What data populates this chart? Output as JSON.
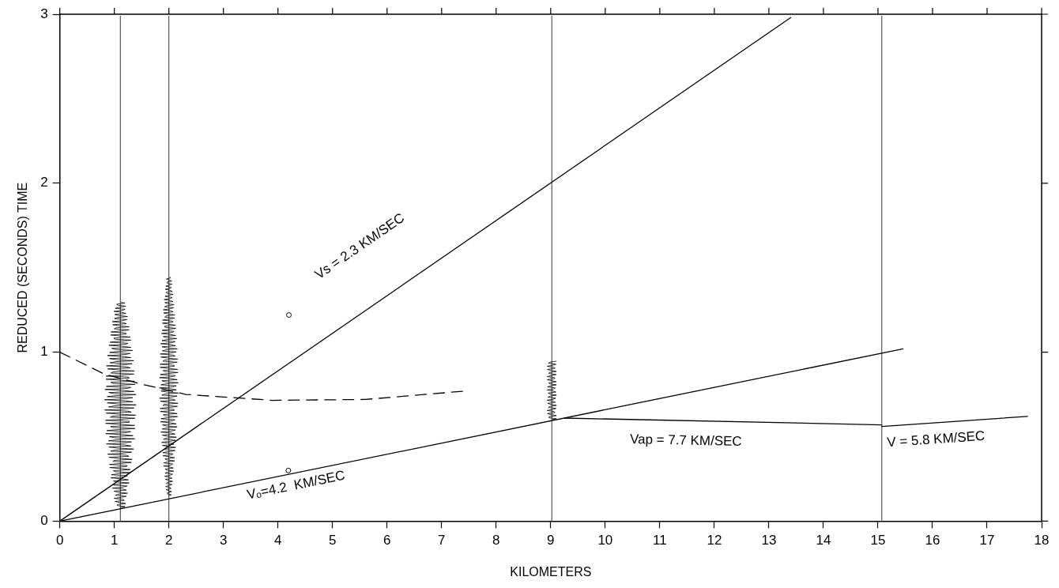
{
  "chart_data": {
    "type": "line",
    "xlabel": "KILOMETERS",
    "ylabel": "REDUCED (SECONDS) TIME",
    "xlim": [
      0,
      18
    ],
    "ylim": [
      0,
      3
    ],
    "xticks": [
      0,
      1,
      2,
      3,
      4,
      5,
      6,
      7,
      8,
      9,
      10,
      11,
      12,
      13,
      14,
      15,
      16,
      17,
      18
    ],
    "yticks": [
      0,
      1,
      2,
      3
    ],
    "grid": false,
    "legend": false,
    "series": [
      {
        "color": "#000000",
        "x": [
          0,
          13.4
        ],
        "values": [
          0,
          2.98
        ]
      },
      {
        "color": "#000000",
        "x": [
          0,
          15.46
        ],
        "values": [
          0,
          1.02
        ]
      },
      {
        "color": "#000000",
        "x": [
          9.25,
          15.07
        ],
        "values": [
          0.61,
          0.57
        ]
      },
      {
        "color": "#000000",
        "x": [
          15.07,
          17.74
        ],
        "values": [
          0.56,
          0.62
        ]
      },
      {
        "color": "#000000",
        "line_style": "dashed",
        "x": [
          0,
          0.82,
          1.51,
          2.31,
          3.9,
          5.6,
          7.43
        ],
        "values": [
          1.0,
          0.87,
          0.81,
          0.75,
          0.715,
          0.72,
          0.77
        ]
      },
      {
        "type": "scatter",
        "color": "#000000",
        "marker": "circle",
        "x": [
          4.2,
          4.19
        ],
        "values": [
          1.22,
          0.3
        ]
      }
    ],
    "ref_lines": [
      {
        "axis": "x",
        "value": 1.11
      },
      {
        "axis": "x",
        "value": 2.0
      },
      {
        "axis": "x",
        "value": 9.02
      },
      {
        "axis": "x",
        "value": 15.07
      }
    ],
    "annotations": [
      "Vs = 2.3 KM/SEC",
      "Vₒ=4.2  KM/SEC",
      "Vap = 7.7 KM/SEC",
      "V = 5.8 KM/SEC"
    ]
  }
}
